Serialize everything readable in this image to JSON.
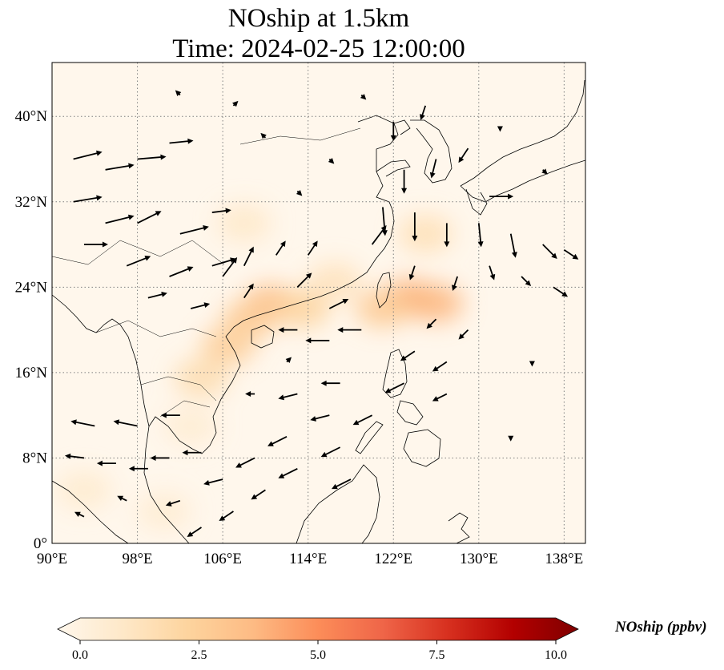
{
  "title": {
    "line1": "NOship at 1.5km",
    "line2": "Time: 2024-02-25 12:00:00"
  },
  "map": {
    "projection": "PlateCarree",
    "lon_range": [
      90,
      140
    ],
    "lat_range": [
      0,
      45
    ],
    "lon_ticks": [
      {
        "value": 90,
        "label": "90°E"
      },
      {
        "value": 98,
        "label": "98°E"
      },
      {
        "value": 106,
        "label": "106°E"
      },
      {
        "value": 114,
        "label": "114°E"
      },
      {
        "value": 122,
        "label": "122°E"
      },
      {
        "value": 130,
        "label": "130°E"
      },
      {
        "value": 138,
        "label": "138°E"
      }
    ],
    "lat_ticks": [
      {
        "value": 0,
        "label": "0°"
      },
      {
        "value": 8,
        "label": "8°N"
      },
      {
        "value": 16,
        "label": "16°N"
      },
      {
        "value": 24,
        "label": "24°N"
      },
      {
        "value": 32,
        "label": "32°N"
      },
      {
        "value": 40,
        "label": "40°N"
      }
    ],
    "gridlines": true,
    "background_color": "#fff7ec",
    "coastline_color": "#000000",
    "grid_color": "#808080"
  },
  "concentration_field": [
    {
      "lon": 123.5,
      "lat": 23.0,
      "value": 4.0
    },
    {
      "lon": 126.0,
      "lat": 22.5,
      "value": 3.8
    },
    {
      "lon": 121.0,
      "lat": 22.0,
      "value": 3.0
    },
    {
      "lon": 110.5,
      "lat": 22.5,
      "value": 3.5
    },
    {
      "lon": 108.5,
      "lat": 21.0,
      "value": 3.0
    },
    {
      "lon": 106.5,
      "lat": 18.5,
      "value": 2.8
    },
    {
      "lon": 113.5,
      "lat": 22.0,
      "value": 2.5
    },
    {
      "lon": 125.0,
      "lat": 29.0,
      "value": 1.8
    },
    {
      "lon": 104.0,
      "lat": 15.5,
      "value": 2.0
    },
    {
      "lon": 116.5,
      "lat": 24.5,
      "value": 1.6
    },
    {
      "lon": 108.0,
      "lat": 30.0,
      "value": 1.2
    },
    {
      "lon": 93.0,
      "lat": 5.0,
      "value": 1.0
    },
    {
      "lon": 100.5,
      "lat": 3.0,
      "value": 0.9
    },
    {
      "lon": 103.0,
      "lat": 11.0,
      "value": 0.9
    }
  ],
  "wind_vectors_note": "",
  "wind_vectors": [
    {
      "lon": 92,
      "lat": 36,
      "u": 6,
      "v": 1.5
    },
    {
      "lon": 95,
      "lat": 35,
      "u": 6,
      "v": 1
    },
    {
      "lon": 98,
      "lat": 36,
      "u": 6,
      "v": 0.5
    },
    {
      "lon": 101,
      "lat": 37.5,
      "u": 5,
      "v": 0.5
    },
    {
      "lon": 92,
      "lat": 32,
      "u": 6,
      "v": 1
    },
    {
      "lon": 95,
      "lat": 30,
      "u": 6,
      "v": 1.5
    },
    {
      "lon": 98,
      "lat": 30,
      "u": 5,
      "v": 2.5
    },
    {
      "lon": 102,
      "lat": 29,
      "u": 6,
      "v": 1.5
    },
    {
      "lon": 105,
      "lat": 31,
      "u": 4,
      "v": 0.5
    },
    {
      "lon": 93,
      "lat": 28,
      "u": 5,
      "v": 0
    },
    {
      "lon": 97,
      "lat": 26,
      "u": 5,
      "v": 2
    },
    {
      "lon": 101,
      "lat": 25,
      "u": 5,
      "v": 2
    },
    {
      "lon": 105,
      "lat": 26,
      "u": 5,
      "v": 1.5
    },
    {
      "lon": 99,
      "lat": 23,
      "u": 4,
      "v": 1
    },
    {
      "lon": 103,
      "lat": 22,
      "u": 4,
      "v": 1
    },
    {
      "lon": 106,
      "lat": 25,
      "u": 3,
      "v": 4
    },
    {
      "lon": 108,
      "lat": 26,
      "u": 2,
      "v": 4
    },
    {
      "lon": 111,
      "lat": 27,
      "u": 2,
      "v": 3
    },
    {
      "lon": 114,
      "lat": 27,
      "u": 2,
      "v": 3
    },
    {
      "lon": 108,
      "lat": 23,
      "u": 2,
      "v": 3
    },
    {
      "lon": 113,
      "lat": 24,
      "u": 3,
      "v": 3
    },
    {
      "lon": 116,
      "lat": 22,
      "u": 4,
      "v": 2
    },
    {
      "lon": 120,
      "lat": 28,
      "u": 3,
      "v": 4
    },
    {
      "lon": 121,
      "lat": 31.5,
      "u": 0.5,
      "v": -6
    },
    {
      "lon": 124,
      "lat": 31,
      "u": 0,
      "v": -6
    },
    {
      "lon": 127,
      "lat": 30,
      "u": 0,
      "v": -5
    },
    {
      "lon": 130,
      "lat": 30,
      "u": 0.5,
      "v": -5
    },
    {
      "lon": 133,
      "lat": 29,
      "u": 1,
      "v": -5
    },
    {
      "lon": 136,
      "lat": 28,
      "u": 3,
      "v": -3
    },
    {
      "lon": 138,
      "lat": 27.5,
      "u": 3,
      "v": -2
    },
    {
      "lon": 123,
      "lat": 35,
      "u": 0,
      "v": -5
    },
    {
      "lon": 126,
      "lat": 36,
      "u": -1,
      "v": -4
    },
    {
      "lon": 129,
      "lat": 37,
      "u": -2,
      "v": -3
    },
    {
      "lon": 122,
      "lat": 39.5,
      "u": 0,
      "v": -4
    },
    {
      "lon": 125,
      "lat": 41,
      "u": -1,
      "v": -3
    },
    {
      "lon": 131,
      "lat": 32.5,
      "u": 5,
      "v": 0
    },
    {
      "lon": 124,
      "lat": 26,
      "u": -1,
      "v": -3
    },
    {
      "lon": 128,
      "lat": 25,
      "u": -1,
      "v": -3
    },
    {
      "lon": 131,
      "lat": 26,
      "u": 1,
      "v": -3
    },
    {
      "lon": 134,
      "lat": 25,
      "u": 2,
      "v": -2
    },
    {
      "lon": 137,
      "lat": 24,
      "u": 3,
      "v": -2
    },
    {
      "lon": 126,
      "lat": 21,
      "u": -2,
      "v": -2
    },
    {
      "lon": 129,
      "lat": 20,
      "u": -2,
      "v": -2
    },
    {
      "lon": 124,
      "lat": 18,
      "u": -3,
      "v": -2
    },
    {
      "lon": 127,
      "lat": 17,
      "u": -3,
      "v": -2
    },
    {
      "lon": 123,
      "lat": 15,
      "u": -4,
      "v": -2
    },
    {
      "lon": 127,
      "lat": 14,
      "u": -3,
      "v": -1.5
    },
    {
      "lon": 119,
      "lat": 20,
      "u": -5,
      "v": 0
    },
    {
      "lon": 116,
      "lat": 19,
      "u": -5,
      "v": 0
    },
    {
      "lon": 113,
      "lat": 20,
      "u": -4,
      "v": 0
    },
    {
      "lon": 117,
      "lat": 15,
      "u": -4,
      "v": 0
    },
    {
      "lon": 113,
      "lat": 14,
      "u": -4,
      "v": -1
    },
    {
      "lon": 120,
      "lat": 12,
      "u": -4,
      "v": -2
    },
    {
      "lon": 116,
      "lat": 12,
      "u": -4,
      "v": -1
    },
    {
      "lon": 112,
      "lat": 10,
      "u": -4,
      "v": -2
    },
    {
      "lon": 117,
      "lat": 9,
      "u": -4,
      "v": -2
    },
    {
      "lon": 109,
      "lat": 8,
      "u": -4,
      "v": -2
    },
    {
      "lon": 113,
      "lat": 7,
      "u": -4,
      "v": -2
    },
    {
      "lon": 118,
      "lat": 6,
      "u": -4,
      "v": -2
    },
    {
      "lon": 110,
      "lat": 5,
      "u": -3,
      "v": -2
    },
    {
      "lon": 106,
      "lat": 6,
      "u": -4,
      "v": -1
    },
    {
      "lon": 107,
      "lat": 3,
      "u": -3,
      "v": -2
    },
    {
      "lon": 104,
      "lat": 1.5,
      "u": -3,
      "v": -2
    },
    {
      "lon": 102,
      "lat": 4,
      "u": -3,
      "v": -1
    },
    {
      "lon": 99,
      "lat": 7,
      "u": -4,
      "v": 0
    },
    {
      "lon": 96,
      "lat": 7.5,
      "u": -4,
      "v": 0
    },
    {
      "lon": 93,
      "lat": 8,
      "u": -4,
      "v": 0.5
    },
    {
      "lon": 101,
      "lat": 8,
      "u": -4,
      "v": 0
    },
    {
      "lon": 104,
      "lat": 8.5,
      "u": -4,
      "v": 0
    },
    {
      "lon": 94,
      "lat": 11,
      "u": -5,
      "v": 1
    },
    {
      "lon": 98,
      "lat": 11,
      "u": -5,
      "v": 1
    },
    {
      "lon": 102,
      "lat": 12,
      "u": -4,
      "v": 0
    },
    {
      "lon": 93,
      "lat": 2.5,
      "u": -2,
      "v": 1
    },
    {
      "lon": 97,
      "lat": 4,
      "u": -2,
      "v": 1
    },
    {
      "lon": 132,
      "lat": 39,
      "u": 0,
      "v": -1
    },
    {
      "lon": 136,
      "lat": 35,
      "u": 1,
      "v": -1
    },
    {
      "lon": 113,
      "lat": 33,
      "u": 1,
      "v": -1
    },
    {
      "lon": 116,
      "lat": 36,
      "u": 1,
      "v": -1
    },
    {
      "lon": 110,
      "lat": 38,
      "u": -1,
      "v": 1
    },
    {
      "lon": 119,
      "lat": 42,
      "u": 1,
      "v": -1
    },
    {
      "lon": 107,
      "lat": 41,
      "u": 1,
      "v": 1
    },
    {
      "lon": 102,
      "lat": 42,
      "u": -1,
      "v": 1
    },
    {
      "lon": 112,
      "lat": 17,
      "u": 1,
      "v": 1
    },
    {
      "lon": 109,
      "lat": 14,
      "u": -2,
      "v": 0
    },
    {
      "lon": 135,
      "lat": 17,
      "u": 0,
      "v": -1
    },
    {
      "lon": 133,
      "lat": 10,
      "u": 0,
      "v": -1
    }
  ],
  "colorbar": {
    "label": "NOship (ppbv)",
    "vmin": 0.0,
    "vmax": 10.0,
    "ticks": [
      {
        "value": 0.0,
        "label": "0.0"
      },
      {
        "value": 2.5,
        "label": "2.5"
      },
      {
        "value": 5.0,
        "label": "5.0"
      },
      {
        "value": 7.5,
        "label": "7.5"
      },
      {
        "value": 10.0,
        "label": "10.0"
      }
    ],
    "extend": "both",
    "colormap": "OrRd",
    "colors": [
      "#fff7ec",
      "#fee8c8",
      "#fdd49e",
      "#fdbb84",
      "#fc8d59",
      "#ef6548",
      "#d7301f",
      "#b30000",
      "#7f0000"
    ]
  }
}
